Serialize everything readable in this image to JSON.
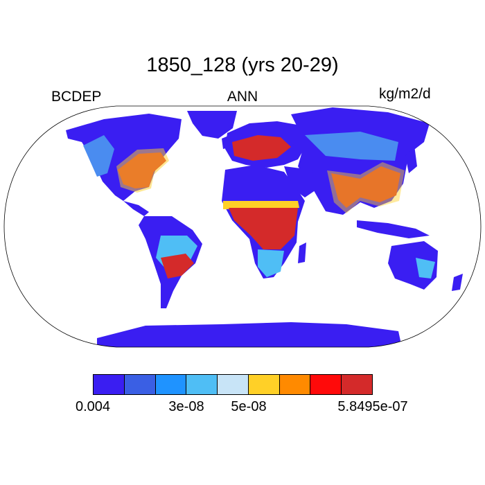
{
  "title": "1850_128 (yrs 20-29)",
  "left_label": "BCDEP",
  "center_label": "ANN",
  "right_label": "kg/m2/d",
  "colorbar": {
    "colors": [
      "#3a1ef2",
      "#3a5fe4",
      "#1f93ff",
      "#4fbef5",
      "#c8e4f7",
      "#ffd027",
      "#ff8a00",
      "#ff0a0a",
      "#d42a2a"
    ],
    "labels": [
      "0.004",
      "3e-08",
      "5e-08",
      "5.8495e-07"
    ]
  },
  "map": {
    "land_low_color": "#3a1ef2",
    "land_mid_color": "#4a8cf0",
    "high_color": "#d42a2a",
    "peak_color": "#ff0a0a",
    "mid_color": "#ffd027"
  }
}
